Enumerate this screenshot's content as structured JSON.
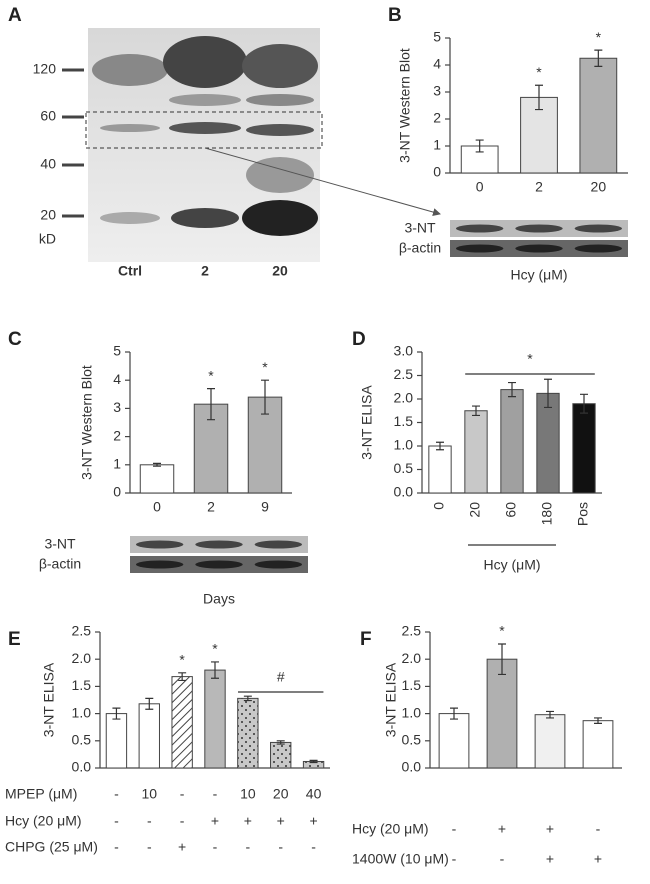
{
  "blot_a": {
    "panel": "A",
    "mw_markers": [
      "120",
      "60",
      "40",
      "20"
    ],
    "mw_unit": "kD",
    "lanes": [
      "Ctrl",
      "2",
      "20"
    ]
  },
  "chart_data": [
    {
      "type": "bar",
      "panel": "B",
      "ylabel": "3-NT Western Blot",
      "xlabel": "Hcy (μM)",
      "categories": [
        "0",
        "2",
        "20"
      ],
      "values": [
        1.0,
        2.8,
        4.25
      ],
      "errors": [
        0.22,
        0.45,
        0.3
      ],
      "colors": [
        "#ffffff",
        "#e4e4e4",
        "#b0b0b0"
      ],
      "patterns": [
        "none",
        "none",
        "none"
      ],
      "stars": [
        null,
        "*",
        "*"
      ],
      "ylim": [
        0,
        5
      ],
      "yticks": [
        0,
        1,
        2,
        3,
        4,
        5
      ],
      "blot_labels": [
        "3-NT",
        "β-actin"
      ]
    },
    {
      "type": "bar",
      "panel": "C",
      "ylabel": "3-NT Western Blot",
      "xlabel": "Days",
      "categories": [
        "0",
        "2",
        "9"
      ],
      "values": [
        1.0,
        3.15,
        3.4
      ],
      "errors": [
        0.05,
        0.55,
        0.6
      ],
      "colors": [
        "#ffffff",
        "#b0b0b0",
        "#b0b0b0"
      ],
      "patterns": [
        "none",
        "none",
        "none"
      ],
      "stars": [
        null,
        "*",
        "*"
      ],
      "ylim": [
        0,
        5
      ],
      "yticks": [
        0,
        1,
        2,
        3,
        4,
        5
      ],
      "blot_labels": [
        "3-NT",
        "β-actin"
      ]
    },
    {
      "type": "bar",
      "panel": "D",
      "ylabel": "3-NT ELISA",
      "xlabel": "Hcy (μM)",
      "categories": [
        "0",
        "20",
        "60",
        "180",
        "Pos"
      ],
      "values": [
        1.0,
        1.75,
        2.2,
        2.12,
        1.9
      ],
      "errors": [
        0.08,
        0.1,
        0.15,
        0.3,
        0.2
      ],
      "colors": [
        "#ffffff",
        "#c8c8c8",
        "#a0a0a0",
        "#787878",
        "#111111"
      ],
      "patterns": [
        "none",
        "none",
        "none",
        "none",
        "none"
      ],
      "stars": [
        null,
        null,
        null,
        null,
        null
      ],
      "bracket_label": "*",
      "ylim": [
        0,
        3
      ],
      "yticks": [
        {
          "value": 0,
          "label": "0.0"
        },
        {
          "value": 0.5,
          "label": "0.5"
        },
        {
          "value": 1,
          "label": "1.0"
        },
        {
          "value": 1.5,
          "label": "1.5"
        },
        {
          "value": 2,
          "label": "2.0"
        },
        {
          "value": 2.5,
          "label": "2.5"
        },
        {
          "value": 3,
          "label": "3.0"
        }
      ]
    },
    {
      "type": "bar",
      "panel": "E",
      "ylabel": "3-NT ELISA",
      "values": [
        1.0,
        1.18,
        1.68,
        1.8,
        1.28,
        0.47,
        0.12
      ],
      "errors": [
        0.1,
        0.1,
        0.07,
        0.15,
        0.04,
        0.03,
        0.02
      ],
      "colors": [
        "#ffffff",
        "#ffffff",
        "#ffffff",
        "#b8b8b8",
        "#c8c8c8",
        "#c8c8c8",
        "#c8c8c8"
      ],
      "patterns": [
        "none",
        "none",
        "hatch",
        "none",
        "dots",
        "dots",
        "dots"
      ],
      "stars": [
        null,
        null,
        "*",
        "*",
        null,
        null,
        null
      ],
      "bracket_label": "#",
      "ylim": [
        0,
        2.5
      ],
      "yticks": [
        {
          "value": 0,
          "label": "0.0"
        },
        {
          "value": 0.5,
          "label": "0.5"
        },
        {
          "value": 1,
          "label": "1.0"
        },
        {
          "value": 1.5,
          "label": "1.5"
        },
        {
          "value": 2,
          "label": "2.0"
        },
        {
          "value": 2.5,
          "label": "2.5"
        }
      ],
      "conditions": [
        {
          "name": "MPEP (μM)",
          "values": [
            "-",
            "10",
            "-",
            "-",
            "10",
            "20",
            "40"
          ]
        },
        {
          "name": "Hcy (20 μM)",
          "values": [
            "-",
            "-",
            "-",
            "+",
            "+",
            "+",
            "+"
          ]
        },
        {
          "name": "CHPG (25 μM)",
          "values": [
            "-",
            "-",
            "+",
            "-",
            "-",
            "-",
            "-"
          ]
        }
      ]
    },
    {
      "type": "bar",
      "panel": "F",
      "ylabel": "3-NT ELISA",
      "values": [
        1.0,
        2.0,
        0.98,
        0.87
      ],
      "errors": [
        0.1,
        0.28,
        0.06,
        0.05
      ],
      "colors": [
        "#ffffff",
        "#b0b0b0",
        "#f0f0f0",
        "#ffffff"
      ],
      "patterns": [
        "none",
        "none",
        "none",
        "none"
      ],
      "stars": [
        null,
        "*",
        null,
        null
      ],
      "ylim": [
        0,
        2.5
      ],
      "yticks": [
        {
          "value": 0,
          "label": "0.0"
        },
        {
          "value": 0.5,
          "label": "0.5"
        },
        {
          "value": 1,
          "label": "1.0"
        },
        {
          "value": 1.5,
          "label": "1.5"
        },
        {
          "value": 2,
          "label": "2.0"
        },
        {
          "value": 2.5,
          "label": "2.5"
        }
      ],
      "conditions": [
        {
          "name": "Hcy (20 μM)",
          "values": [
            "-",
            "+",
            "+",
            "-"
          ]
        },
        {
          "name": "1400W (10 μM)",
          "values": [
            "-",
            "-",
            "+",
            "+"
          ]
        }
      ]
    }
  ]
}
